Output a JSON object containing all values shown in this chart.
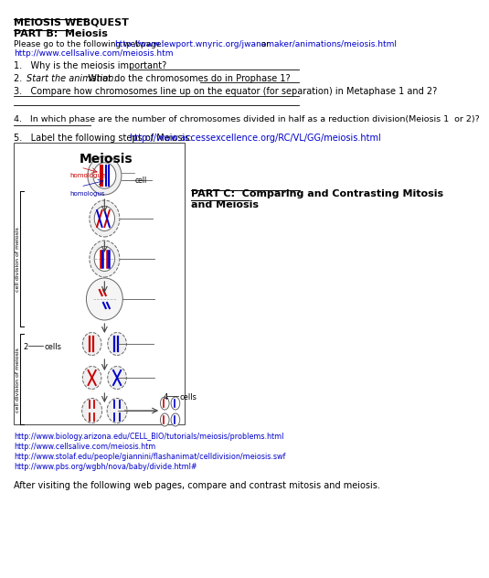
{
  "title": "MEIOSIS WEBQUEST",
  "part_b_title": "PART B:  Meiosis",
  "intro_url2": "http://www.cellsalive.com/meiosis.htm",
  "q1": "1.   Why is the meiosis important?",
  "q3": "3.   Compare how chromosomes line up on the equator (for separation) in Metaphase 1 and 2?",
  "q4": "4.   In which phase are the number of chromosomes divided in half as a reduction division(Meiosis 1  or 2)?",
  "part_c_title": "PART C:  Comparing and Contrasting Mitosis\nand Meiosis",
  "links": [
    "http://www.biology.arizona.edu/CELL_BIO/tutorials/meiosis/problems.html",
    "http://www.cellsalive.com/meiosis.htm",
    "http://www.stolaf.edu/people/giannini/flashanimat/celldivision/meiosis.swf",
    "http://www.pbs.org/wgbh/nova/baby/divide.html#"
  ],
  "footer": "After visiting the following web pages, compare and contrast mitosis and meiosis.",
  "bg_color": "#ffffff",
  "text_color": "#000000",
  "link_color": "#0000cc",
  "diagram_title": "Meiosis",
  "cell_division_label1": "cell division of meiosis",
  "cell_division_label2": "cell division of meiosis",
  "two_cells_label": "2",
  "four_cells_label": "4",
  "cells_word": "cells",
  "homologue_label": "homologue",
  "homologus_label": "homologus",
  "cell_label": "cell"
}
